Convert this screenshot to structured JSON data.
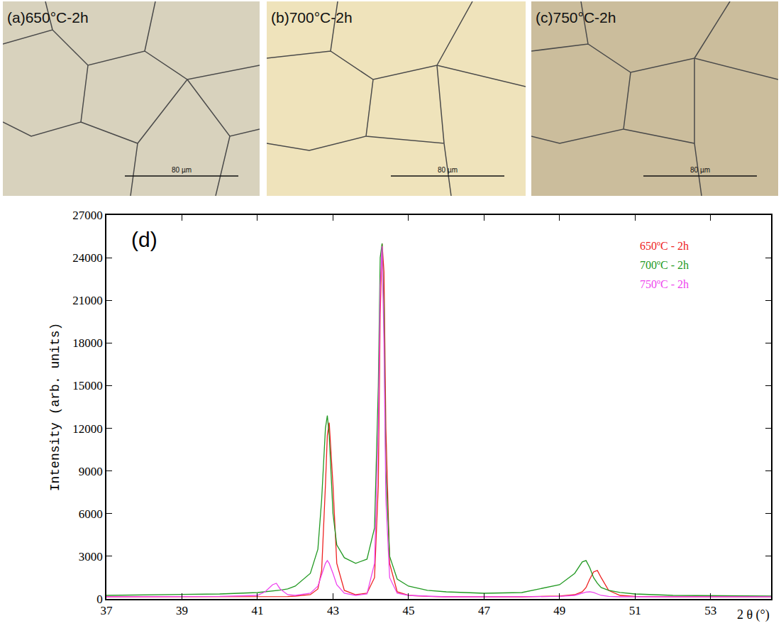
{
  "micrographs": [
    {
      "label": "(a)650°C-2h",
      "scale_bar": "80 µm"
    },
    {
      "label": "(b)700°C-2h",
      "scale_bar": "80 µm"
    },
    {
      "label": "(c)750°C-2h",
      "scale_bar": "80 µm"
    }
  ],
  "chart_data": {
    "type": "line",
    "panel_label": "(d)",
    "x_label": "2 θ (°)",
    "y_label": "Intensity (arb. units)",
    "x": [
      37,
      39,
      40,
      41,
      41.2,
      41.4,
      41.5,
      41.6,
      41.8,
      42,
      42.4,
      42.6,
      42.7,
      42.8,
      42.85,
      42.9,
      43.0,
      43.1,
      43.3,
      43.6,
      43.9,
      44.1,
      44.2,
      44.25,
      44.3,
      44.35,
      44.4,
      44.5,
      44.7,
      45,
      45.5,
      46,
      47,
      48,
      49,
      49.4,
      49.6,
      49.7,
      49.8,
      49.9,
      50,
      50.1,
      50.3,
      50.6,
      51,
      52,
      54.6
    ],
    "series": [
      {
        "name": "650ºC - 2h",
        "color": "#ee2222",
        "values": [
          150,
          150,
          150,
          150,
          150,
          150,
          150,
          160,
          170,
          200,
          300,
          700,
          2000,
          8000,
          11500,
          12400,
          8000,
          2500,
          600,
          300,
          400,
          1500,
          8000,
          20000,
          25000,
          23000,
          12000,
          2500,
          500,
          250,
          180,
          150,
          150,
          150,
          200,
          300,
          500,
          800,
          1400,
          1900,
          2000,
          1500,
          600,
          250,
          180,
          150,
          150
        ]
      },
      {
        "name": "700ºC - 2h",
        "color": "#229922",
        "values": [
          250,
          300,
          350,
          450,
          500,
          550,
          580,
          620,
          700,
          900,
          1800,
          3500,
          7000,
          12000,
          12900,
          11500,
          6000,
          3800,
          2900,
          2500,
          2800,
          5000,
          15000,
          24000,
          25000,
          20000,
          9000,
          3000,
          1400,
          900,
          600,
          500,
          400,
          450,
          1000,
          1800,
          2600,
          2700,
          2200,
          1500,
          1100,
          800,
          600,
          450,
          350,
          250,
          200
        ]
      },
      {
        "name": "750ºC - 2h",
        "color": "#ee44ee",
        "values": [
          150,
          150,
          180,
          250,
          500,
          1000,
          1100,
          700,
          300,
          250,
          400,
          900,
          1700,
          2500,
          2700,
          2500,
          1800,
          1000,
          400,
          250,
          350,
          2500,
          12000,
          22000,
          24800,
          18000,
          7000,
          1500,
          400,
          250,
          200,
          150,
          150,
          150,
          180,
          250,
          400,
          480,
          500,
          450,
          350,
          250,
          180,
          150,
          150,
          150,
          150
        ]
      }
    ],
    "xlim": [
      37,
      54.6
    ],
    "xticks": [
      37,
      39,
      41,
      43,
      45,
      47,
      49,
      51,
      53
    ],
    "ylim": [
      0,
      27000
    ],
    "yticks": [
      0,
      3000,
      6000,
      9000,
      12000,
      15000,
      18000,
      21000,
      24000,
      27000
    ],
    "grid": false,
    "legend": "upper right"
  }
}
